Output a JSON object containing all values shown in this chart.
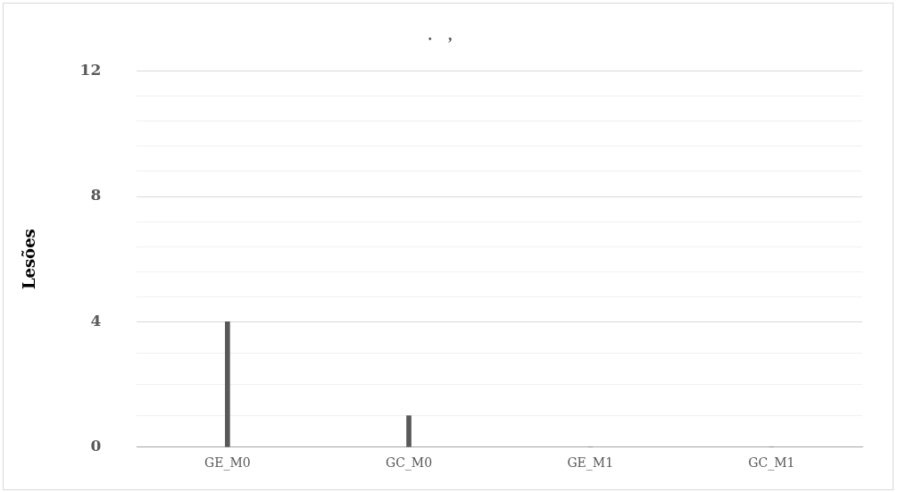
{
  "chart_data": {
    "type": "bar",
    "title": ".    ,",
    "ylabel": "Lesões",
    "categories": [
      "GE_M0",
      "GC_M0",
      "GE_M1",
      "GC_M1"
    ],
    "values": [
      4,
      1,
      0,
      0
    ],
    "color": "#595959",
    "ylim": [
      0,
      12
    ],
    "yticks": [
      0,
      {
        "value": 1,
        "label": null
      },
      {
        "value": 2,
        "label": null
      },
      {
        "value": 3,
        "label": null
      },
      4,
      {
        "value": 4.8,
        "label": null
      },
      {
        "value": 5.6,
        "label": null
      },
      {
        "value": 6.4,
        "label": null
      },
      {
        "value": 7.2,
        "label": null
      },
      8,
      {
        "value": 8.8,
        "label": null
      },
      {
        "value": 9.6,
        "label": null
      },
      {
        "value": 10.4,
        "label": null
      },
      {
        "value": 11.2,
        "label": null
      },
      12
    ],
    "grid": "y",
    "legend": false
  }
}
